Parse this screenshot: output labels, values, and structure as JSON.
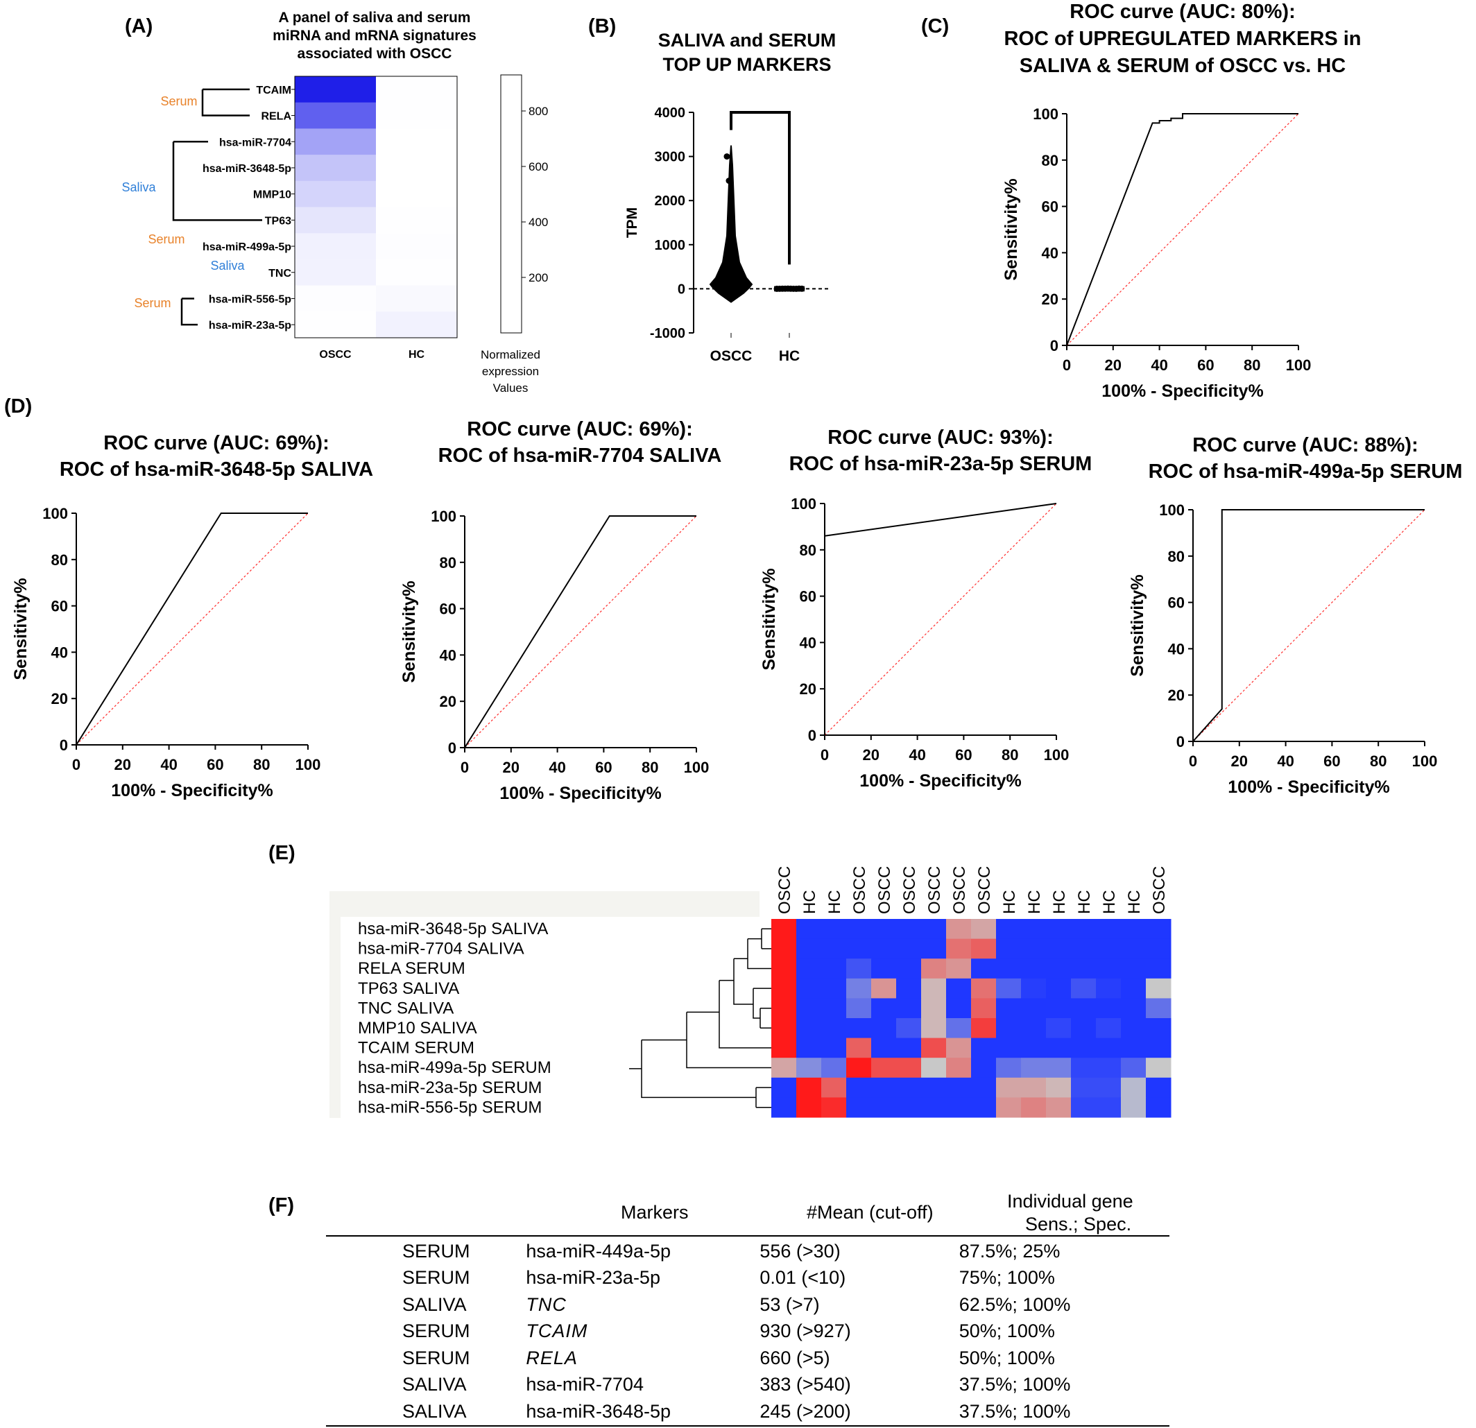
{
  "panel_labels": {
    "A": "(A)",
    "B": "(B)",
    "C": "(C)",
    "D": "(D)",
    "E": "(E)",
    "F": "(F)"
  },
  "chart_data": [
    {
      "panel": "A",
      "type": "heatmap",
      "title_lines": [
        "A panel of saliva and serum",
        "miRNA and mRNA signatures",
        "associated with OSCC"
      ],
      "columns": [
        "OSCC",
        "HC"
      ],
      "rows": [
        "TCAIM",
        "RELA",
        "hsa-miR-7704",
        "hsa-miR-3648-5p",
        "MMP10",
        "TP63",
        "hsa-miR-499a-5p",
        "TNC",
        "hsa-miR-556-5p",
        "hsa-miR-23a-5p"
      ],
      "values": [
        [
          930,
          5
        ],
        [
          660,
          3
        ],
        [
          383,
          2
        ],
        [
          245,
          2
        ],
        [
          180,
          2
        ],
        [
          110,
          3
        ],
        [
          60,
          8
        ],
        [
          53,
          3
        ],
        [
          8,
          25
        ],
        [
          5,
          55
        ]
      ],
      "vmax": 930,
      "color_low": "#ffffff",
      "color_high": "#1f1fe8",
      "groups": [
        {
          "label": "Serum",
          "color": "#e8822a"
        },
        {
          "label": "Saliva",
          "color": "#2f7fd8"
        },
        {
          "label": "Serum",
          "color": "#e8822a"
        },
        {
          "label": "Saliva",
          "color": "#2f7fd8"
        },
        {
          "label": "Serum",
          "color": "#e8822a"
        }
      ],
      "colorbar_ticks": [
        800,
        600,
        400,
        200
      ],
      "colorbar_title_lines": [
        "Normalized",
        "expression",
        "Values"
      ]
    },
    {
      "panel": "B",
      "type": "violin",
      "title_lines": [
        "SALIVA and SERUM",
        "TOP UP MARKERS"
      ],
      "ylabel": "TPM",
      "categories": [
        "OSCC",
        "HC"
      ],
      "ylim": [
        -1000,
        4000
      ],
      "yticks": [
        4000,
        3000,
        2000,
        1000,
        0,
        -1000
      ],
      "oscc_points": [
        3000,
        2450,
        1580,
        900,
        780,
        650,
        420,
        300,
        220,
        150,
        120,
        90,
        70,
        50,
        40,
        30,
        20,
        15,
        10,
        5,
        0
      ],
      "hc_points": [
        0,
        1,
        2,
        3,
        5,
        2,
        1,
        0,
        4,
        2
      ],
      "bracket_top": 4000,
      "hc_bracket_bottom": 550
    },
    {
      "panel": "C",
      "type": "line",
      "title_lines": [
        "ROC curve (AUC: 80%):",
        "ROC of UPREGULATED MARKERS in",
        "SALIVA & SERUM of OSCC vs. HC"
      ],
      "xlabel": "100% - Specificity%",
      "ylabel": "Sensitivity%",
      "xlim": [
        0,
        100
      ],
      "ylim": [
        0,
        100
      ],
      "ticks": [
        0,
        20,
        40,
        60,
        80,
        100
      ],
      "roc": [
        [
          0,
          0
        ],
        [
          37,
          96
        ],
        [
          40,
          96
        ],
        [
          40,
          97
        ],
        [
          45,
          97
        ],
        [
          45,
          98
        ],
        [
          50,
          98
        ],
        [
          50,
          100
        ],
        [
          100,
          100
        ]
      ]
    },
    {
      "panel": "D1",
      "type": "line",
      "title_lines": [
        "ROC curve (AUC: 69%):",
        "ROC of hsa-miR-3648-5p SALIVA"
      ],
      "xlabel": "100% - Specificity%",
      "ylabel": "Sensitivity%",
      "xlim": [
        0,
        100
      ],
      "ylim": [
        0,
        100
      ],
      "ticks": [
        0,
        20,
        40,
        60,
        80,
        100
      ],
      "roc": [
        [
          0,
          0
        ],
        [
          62.5,
          100
        ],
        [
          100,
          100
        ]
      ]
    },
    {
      "panel": "D2",
      "type": "line",
      "title_lines": [
        "ROC curve (AUC: 69%):",
        "ROC of hsa-miR-7704 SALIVA"
      ],
      "xlabel": "100% - Specificity%",
      "ylabel": "Sensitivity%",
      "xlim": [
        0,
        100
      ],
      "ylim": [
        0,
        100
      ],
      "ticks": [
        0,
        20,
        40,
        60,
        80,
        100
      ],
      "roc": [
        [
          0,
          0
        ],
        [
          62.5,
          100
        ],
        [
          100,
          100
        ]
      ]
    },
    {
      "panel": "D3",
      "type": "line",
      "title_lines": [
        "ROC curve (AUC: 93%):",
        "ROC of hsa-miR-23a-5p SERUM"
      ],
      "xlabel": "100% - Specificity%",
      "ylabel": "Sensitivity%",
      "xlim": [
        0,
        100
      ],
      "ylim": [
        0,
        100
      ],
      "ticks": [
        0,
        20,
        40,
        60,
        80,
        100
      ],
      "roc": [
        [
          0,
          0
        ],
        [
          0,
          86
        ],
        [
          100,
          100
        ]
      ]
    },
    {
      "panel": "D4",
      "type": "line",
      "title_lines": [
        "ROC curve (AUC: 88%):",
        "ROC of hsa-miR-499a-5p SERUM"
      ],
      "xlabel": "100% - Specificity%",
      "ylabel": "Sensitivity%",
      "xlim": [
        0,
        100
      ],
      "ylim": [
        0,
        100
      ],
      "ticks": [
        0,
        20,
        40,
        60,
        80,
        100
      ],
      "roc": [
        [
          0,
          0
        ],
        [
          12.5,
          14
        ],
        [
          12.5,
          100
        ],
        [
          100,
          100
        ]
      ]
    },
    {
      "panel": "E",
      "type": "heatmap",
      "columns": [
        "OSCC",
        "HC",
        "HC",
        "OSCC",
        "OSCC",
        "OSCC",
        "OSCC",
        "OSCC",
        "OSCC",
        "HC",
        "HC",
        "HC",
        "HC",
        "HC",
        "HC",
        "OSCC"
      ],
      "rows": [
        "hsa-miR-3648-5p SALIVA",
        "hsa-miR-7704 SALIVA",
        "RELA SERUM",
        "TP63 SALIVA",
        "TNC SALIVA",
        "MMP10 SALIVA",
        "TCAIM SERUM",
        "hsa-miR-499a-5p SERUM",
        "hsa-miR-23a-5p SERUM",
        "hsa-miR-556-5p SERUM"
      ],
      "values": [
        [
          1.0,
          -1,
          -1,
          -1,
          -1,
          -1,
          -1,
          0.3,
          0.2,
          -1,
          -1,
          -1,
          -1,
          -1,
          -1,
          -1
        ],
        [
          1.0,
          -1,
          -1,
          -1,
          -1,
          -1,
          -1,
          0.5,
          0.6,
          -1,
          -1,
          -1,
          -1,
          -1,
          -1,
          -1
        ],
        [
          1.0,
          -1,
          -1,
          -0.8,
          -1,
          -1,
          0.4,
          0.3,
          -1,
          -1,
          -1,
          -1,
          -1,
          -1,
          -1,
          -1
        ],
        [
          1.0,
          -1,
          -1,
          -0.5,
          0.3,
          -1,
          0.1,
          -1,
          0.5,
          -0.7,
          -0.95,
          -1,
          -0.8,
          -0.95,
          -1,
          0.0
        ],
        [
          1.0,
          -1,
          -1,
          -0.6,
          -1,
          -1,
          0.1,
          -1,
          0.6,
          -1,
          -1,
          -1,
          -1,
          -1,
          -1,
          -0.6
        ],
        [
          1.0,
          -1,
          -1,
          -1,
          -1,
          -0.8,
          0.1,
          -0.6,
          0.8,
          -1,
          -1,
          -0.9,
          -1,
          -0.9,
          -1,
          -1
        ],
        [
          1.0,
          -1,
          -1,
          0.6,
          -1,
          -1,
          0.7,
          0.3,
          -1,
          -1,
          -1,
          -1,
          -1,
          -1,
          -1,
          -1
        ],
        [
          0.2,
          -0.4,
          -0.6,
          1.0,
          0.7,
          0.7,
          0.0,
          0.4,
          -1,
          -0.6,
          -0.5,
          -0.5,
          -0.9,
          -0.9,
          -0.7,
          0.0
        ],
        [
          -1,
          1.0,
          0.6,
          -1,
          -1,
          -1,
          -1,
          -1,
          -1,
          0.2,
          0.2,
          0.1,
          -0.85,
          -0.85,
          -0.1,
          -1
        ],
        [
          -1,
          1.0,
          0.9,
          -1,
          -1,
          -1,
          -1,
          -1,
          -1,
          0.3,
          0.4,
          0.3,
          -0.9,
          -0.9,
          -0.1,
          -1
        ]
      ],
      "color_low": "#1f37ff",
      "color_mid": "#c8c8c8",
      "color_high": "#ff1a1a"
    }
  ],
  "table_f": {
    "headers": [
      "",
      "Markers",
      "#Mean (cut-off)",
      "Individual gene\nSens.; Spec."
    ],
    "header_line1": "Individual gene",
    "header_line2": "Sens.; Spec.",
    "rows": [
      {
        "sample": "SERUM",
        "marker": "hsa-miR-449a-5p",
        "italic": false,
        "mean": "556 (>30)",
        "sens_spec": "87.5%; 25%"
      },
      {
        "sample": "SERUM",
        "marker": "hsa-miR-23a-5p",
        "italic": false,
        "mean": "0.01 (<10)",
        "sens_spec": "75%; 100%"
      },
      {
        "sample": "SALIVA",
        "marker": "TNC",
        "italic": true,
        "mean": "53 (>7)",
        "sens_spec": "62.5%; 100%"
      },
      {
        "sample": "SERUM",
        "marker": "TCAIM",
        "italic": true,
        "mean": "930 (>927)",
        "sens_spec": "50%; 100%"
      },
      {
        "sample": "SERUM",
        "marker": "RELA",
        "italic": true,
        "mean": "660 (>5)",
        "sens_spec": "50%; 100%"
      },
      {
        "sample": "SALIVA",
        "marker": "hsa-miR-7704",
        "italic": false,
        "mean": "383 (>540)",
        "sens_spec": "37.5%; 100%"
      },
      {
        "sample": "SALIVA",
        "marker": "hsa-miR-3648-5p",
        "italic": false,
        "mean": "245 (>200)",
        "sens_spec": "37.5%; 100%"
      }
    ]
  }
}
